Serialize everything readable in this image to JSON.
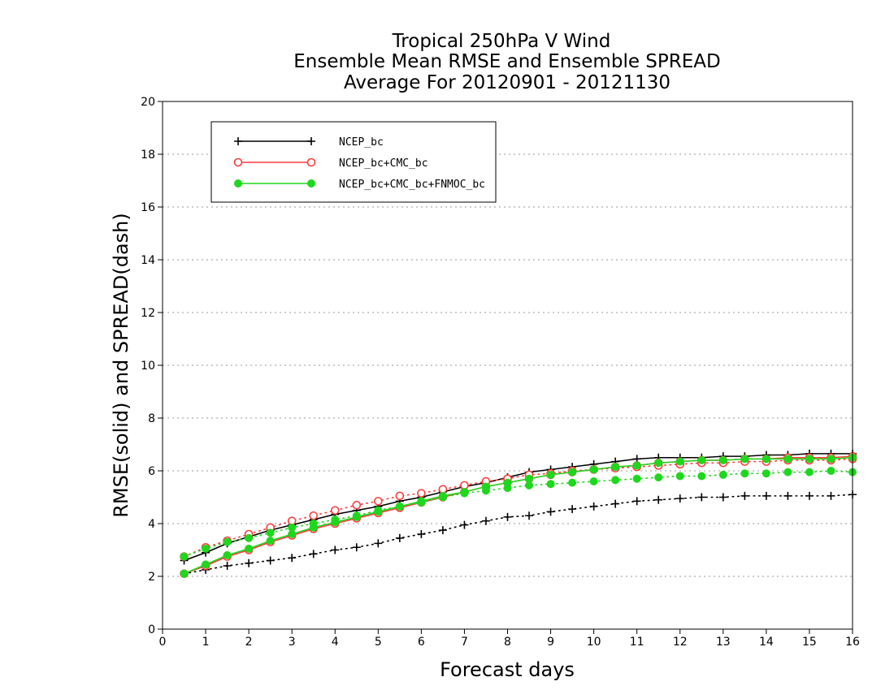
{
  "chart_data": {
    "type": "line",
    "title_lines": [
      "Tropical 250hPa V Wind",
      "Ensemble Mean RMSE and Ensemble SPREAD",
      "Average For 20120901 - 20121130"
    ],
    "xlabel": "Forecast days",
    "ylabel": "RMSE(solid) and SPREAD(dash)",
    "xlim": [
      0,
      16
    ],
    "ylim": [
      0,
      20
    ],
    "x_ticks": [
      0,
      1,
      2,
      3,
      4,
      5,
      6,
      7,
      8,
      9,
      10,
      11,
      12,
      13,
      14,
      15,
      16
    ],
    "y_ticks": [
      0,
      2,
      4,
      6,
      8,
      10,
      12,
      14,
      16,
      18,
      20
    ],
    "grid": "horizontal dotted",
    "legend_position": "top-left",
    "x": [
      0.5,
      1,
      1.5,
      2,
      2.5,
      3,
      3.5,
      4,
      4.5,
      5,
      5.5,
      6,
      6.5,
      7,
      7.5,
      8,
      8.5,
      9,
      9.5,
      10,
      10.5,
      11,
      11.5,
      12,
      12.5,
      13,
      13.5,
      14,
      14.5,
      15,
      15.5,
      16
    ],
    "series": [
      {
        "name": "NCEP_bc",
        "color": "#000000",
        "marker": "plus",
        "rmse": [
          2.6,
          2.9,
          3.25,
          3.5,
          3.75,
          3.95,
          4.15,
          4.35,
          4.5,
          4.65,
          4.85,
          5.0,
          5.2,
          5.4,
          5.55,
          5.75,
          5.95,
          6.05,
          6.15,
          6.25,
          6.35,
          6.45,
          6.5,
          6.5,
          6.5,
          6.55,
          6.55,
          6.6,
          6.6,
          6.65,
          6.65,
          6.65
        ],
        "spread": [
          2.1,
          2.25,
          2.4,
          2.5,
          2.6,
          2.7,
          2.85,
          3.0,
          3.1,
          3.25,
          3.45,
          3.6,
          3.75,
          3.95,
          4.1,
          4.25,
          4.3,
          4.45,
          4.55,
          4.65,
          4.75,
          4.85,
          4.9,
          4.95,
          5.0,
          5.0,
          5.05,
          5.05,
          5.05,
          5.05,
          5.05,
          5.1
        ]
      },
      {
        "name": "NCEP_bc+CMC_bc",
        "color": "#ff3b3b",
        "marker": "open-circle",
        "rmse": [
          2.1,
          2.4,
          2.75,
          3.0,
          3.3,
          3.55,
          3.8,
          4.0,
          4.2,
          4.4,
          4.6,
          4.8,
          5.0,
          5.2,
          5.4,
          5.55,
          5.7,
          5.85,
          5.95,
          6.05,
          6.15,
          6.2,
          6.3,
          6.35,
          6.4,
          6.4,
          6.45,
          6.45,
          6.5,
          6.5,
          6.5,
          6.55
        ],
        "spread": [
          2.75,
          3.1,
          3.35,
          3.6,
          3.85,
          4.1,
          4.3,
          4.5,
          4.7,
          4.85,
          5.05,
          5.15,
          5.3,
          5.45,
          5.6,
          5.7,
          5.85,
          5.9,
          6.0,
          6.05,
          6.1,
          6.15,
          6.2,
          6.25,
          6.3,
          6.3,
          6.35,
          6.35,
          6.4,
          6.4,
          6.4,
          6.45
        ]
      },
      {
        "name": "NCEP_bc+CMC_bc+FNMOC_bc",
        "color": "#1ed81e",
        "marker": "filled-circle",
        "rmse": [
          2.1,
          2.45,
          2.8,
          3.05,
          3.35,
          3.6,
          3.85,
          4.05,
          4.25,
          4.45,
          4.65,
          4.85,
          5.05,
          5.2,
          5.4,
          5.55,
          5.7,
          5.85,
          5.95,
          6.05,
          6.15,
          6.2,
          6.3,
          6.35,
          6.4,
          6.4,
          6.45,
          6.45,
          6.45,
          6.45,
          6.45,
          6.5
        ],
        "spread": [
          2.75,
          3.05,
          3.3,
          3.45,
          3.65,
          3.85,
          4.0,
          4.15,
          4.3,
          4.5,
          4.65,
          4.8,
          5.0,
          5.15,
          5.25,
          5.35,
          5.45,
          5.5,
          5.55,
          5.6,
          5.65,
          5.7,
          5.75,
          5.8,
          5.8,
          5.85,
          5.9,
          5.9,
          5.95,
          5.95,
          6.0,
          5.95
        ]
      }
    ]
  }
}
